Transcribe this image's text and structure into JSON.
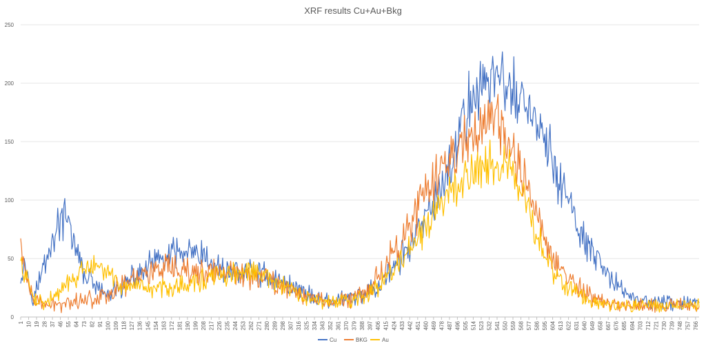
{
  "chart_data": {
    "type": "line",
    "title": "XRF results Cu+Au+Bkg",
    "xlabel": "",
    "ylabel": "",
    "x_range": [
      1,
      770
    ],
    "x_tick_step": 9,
    "x_tick_labels": [
      "1",
      "10",
      "19",
      "28",
      "37",
      "46",
      "55",
      "64",
      "73",
      "82",
      "91",
      "100",
      "109",
      "118",
      "127",
      "136",
      "145",
      "154",
      "163",
      "172",
      "181",
      "190",
      "199",
      "208",
      "217",
      "226",
      "235",
      "244",
      "253",
      "262",
      "271",
      "280",
      "289",
      "298",
      "307",
      "316",
      "325",
      "334",
      "343",
      "352",
      "361",
      "370",
      "379",
      "388",
      "397",
      "406",
      "415",
      "424",
      "433",
      "442",
      "451",
      "460",
      "469",
      "478",
      "487",
      "496",
      "505",
      "514",
      "523",
      "532",
      "541",
      "550",
      "559",
      "568",
      "577",
      "586",
      "595",
      "604",
      "613",
      "622",
      "631",
      "640",
      "649",
      "658",
      "667",
      "676",
      "685",
      "694",
      "703",
      "712",
      "721",
      "730",
      "739",
      "748",
      "757",
      "766"
    ],
    "ylim": [
      0,
      250
    ],
    "y_ticks": [
      0,
      50,
      100,
      150,
      200,
      250
    ],
    "grid": true,
    "legend_position": "bottom",
    "series": [
      {
        "name": "Cu",
        "color": "#4472c4",
        "anchors": [
          [
            1,
            38
          ],
          [
            5,
            50
          ],
          [
            10,
            30
          ],
          [
            15,
            20
          ],
          [
            20,
            25
          ],
          [
            25,
            38
          ],
          [
            30,
            52
          ],
          [
            37,
            65
          ],
          [
            42,
            75
          ],
          [
            46,
            85
          ],
          [
            50,
            82
          ],
          [
            55,
            80
          ],
          [
            60,
            70
          ],
          [
            64,
            55
          ],
          [
            70,
            42
          ],
          [
            75,
            35
          ],
          [
            82,
            30
          ],
          [
            91,
            22
          ],
          [
            100,
            18
          ],
          [
            109,
            22
          ],
          [
            118,
            26
          ],
          [
            127,
            32
          ],
          [
            136,
            38
          ],
          [
            145,
            42
          ],
          [
            154,
            47
          ],
          [
            163,
            50
          ],
          [
            172,
            52
          ],
          [
            181,
            55
          ],
          [
            190,
            55
          ],
          [
            199,
            52
          ],
          [
            208,
            50
          ],
          [
            217,
            45
          ],
          [
            226,
            42
          ],
          [
            235,
            40
          ],
          [
            244,
            40
          ],
          [
            253,
            38
          ],
          [
            262,
            40
          ],
          [
            271,
            38
          ],
          [
            280,
            36
          ],
          [
            289,
            32
          ],
          [
            298,
            30
          ],
          [
            307,
            27
          ],
          [
            316,
            24
          ],
          [
            325,
            20
          ],
          [
            334,
            17
          ],
          [
            343,
            15
          ],
          [
            352,
            14
          ],
          [
            361,
            14
          ],
          [
            370,
            15
          ],
          [
            379,
            16
          ],
          [
            388,
            18
          ],
          [
            397,
            22
          ],
          [
            406,
            28
          ],
          [
            415,
            35
          ],
          [
            424,
            42
          ],
          [
            433,
            52
          ],
          [
            442,
            60
          ],
          [
            451,
            70
          ],
          [
            460,
            82
          ],
          [
            469,
            96
          ],
          [
            478,
            112
          ],
          [
            487,
            130
          ],
          [
            496,
            150
          ],
          [
            505,
            172
          ],
          [
            514,
            190
          ],
          [
            523,
            200
          ],
          [
            532,
            205
          ],
          [
            541,
            206
          ],
          [
            550,
            200
          ],
          [
            559,
            192
          ],
          [
            568,
            185
          ],
          [
            577,
            178
          ],
          [
            586,
            165
          ],
          [
            595,
            150
          ],
          [
            604,
            132
          ],
          [
            613,
            115
          ],
          [
            622,
            98
          ],
          [
            631,
            80
          ],
          [
            640,
            66
          ],
          [
            649,
            52
          ],
          [
            658,
            42
          ],
          [
            667,
            35
          ],
          [
            676,
            28
          ],
          [
            685,
            22
          ],
          [
            694,
            18
          ],
          [
            703,
            15
          ],
          [
            712,
            13
          ],
          [
            721,
            12
          ],
          [
            730,
            12
          ],
          [
            739,
            12
          ],
          [
            748,
            12
          ],
          [
            757,
            12
          ],
          [
            766,
            12
          ],
          [
            770,
            12
          ]
        ],
        "noise": 8
      },
      {
        "name": "BKG",
        "color": "#ed7d31",
        "anchors": [
          [
            1,
            62
          ],
          [
            3,
            55
          ],
          [
            6,
            38
          ],
          [
            10,
            25
          ],
          [
            15,
            15
          ],
          [
            20,
            12
          ],
          [
            28,
            11
          ],
          [
            37,
            10
          ],
          [
            46,
            11
          ],
          [
            55,
            13
          ],
          [
            64,
            14
          ],
          [
            73,
            15
          ],
          [
            82,
            16
          ],
          [
            91,
            18
          ],
          [
            100,
            20
          ],
          [
            109,
            24
          ],
          [
            118,
            28
          ],
          [
            127,
            32
          ],
          [
            136,
            36
          ],
          [
            145,
            38
          ],
          [
            154,
            40
          ],
          [
            163,
            40
          ],
          [
            172,
            40
          ],
          [
            181,
            38
          ],
          [
            190,
            38
          ],
          [
            199,
            38
          ],
          [
            208,
            38
          ],
          [
            217,
            38
          ],
          [
            226,
            38
          ],
          [
            235,
            38
          ],
          [
            244,
            38
          ],
          [
            253,
            37
          ],
          [
            262,
            36
          ],
          [
            271,
            35
          ],
          [
            280,
            33
          ],
          [
            289,
            30
          ],
          [
            298,
            27
          ],
          [
            307,
            24
          ],
          [
            316,
            21
          ],
          [
            325,
            18
          ],
          [
            334,
            15
          ],
          [
            343,
            14
          ],
          [
            352,
            13
          ],
          [
            361,
            14
          ],
          [
            370,
            15
          ],
          [
            379,
            17
          ],
          [
            388,
            21
          ],
          [
            397,
            27
          ],
          [
            406,
            35
          ],
          [
            415,
            45
          ],
          [
            424,
            56
          ],
          [
            433,
            68
          ],
          [
            442,
            80
          ],
          [
            451,
            92
          ],
          [
            460,
            104
          ],
          [
            469,
            115
          ],
          [
            478,
            125
          ],
          [
            487,
            135
          ],
          [
            496,
            145
          ],
          [
            505,
            152
          ],
          [
            514,
            160
          ],
          [
            523,
            166
          ],
          [
            532,
            168
          ],
          [
            541,
            164
          ],
          [
            550,
            155
          ],
          [
            559,
            142
          ],
          [
            568,
            125
          ],
          [
            577,
            105
          ],
          [
            586,
            86
          ],
          [
            595,
            68
          ],
          [
            604,
            52
          ],
          [
            613,
            40
          ],
          [
            622,
            32
          ],
          [
            631,
            26
          ],
          [
            640,
            21
          ],
          [
            649,
            17
          ],
          [
            658,
            14
          ],
          [
            667,
            12
          ],
          [
            676,
            11
          ],
          [
            685,
            11
          ],
          [
            694,
            10
          ],
          [
            703,
            10
          ],
          [
            712,
            10
          ],
          [
            721,
            10
          ],
          [
            730,
            10
          ],
          [
            739,
            10
          ],
          [
            748,
            10
          ],
          [
            757,
            10
          ],
          [
            766,
            10
          ],
          [
            770,
            10
          ]
        ],
        "noise": 8
      },
      {
        "name": "Au",
        "color": "#ffc000",
        "anchors": [
          [
            1,
            45
          ],
          [
            5,
            38
          ],
          [
            10,
            26
          ],
          [
            15,
            18
          ],
          [
            20,
            14
          ],
          [
            28,
            13
          ],
          [
            37,
            16
          ],
          [
            46,
            22
          ],
          [
            55,
            28
          ],
          [
            64,
            34
          ],
          [
            73,
            40
          ],
          [
            82,
            42
          ],
          [
            91,
            42
          ],
          [
            100,
            38
          ],
          [
            109,
            30
          ],
          [
            118,
            26
          ],
          [
            127,
            24
          ],
          [
            136,
            24
          ],
          [
            145,
            24
          ],
          [
            154,
            24
          ],
          [
            163,
            25
          ],
          [
            172,
            26
          ],
          [
            181,
            27
          ],
          [
            190,
            28
          ],
          [
            199,
            30
          ],
          [
            208,
            32
          ],
          [
            217,
            33
          ],
          [
            226,
            35
          ],
          [
            235,
            36
          ],
          [
            244,
            37
          ],
          [
            253,
            38
          ],
          [
            262,
            38
          ],
          [
            271,
            36
          ],
          [
            280,
            33
          ],
          [
            289,
            30
          ],
          [
            298,
            26
          ],
          [
            307,
            22
          ],
          [
            316,
            19
          ],
          [
            325,
            16
          ],
          [
            334,
            14
          ],
          [
            343,
            13
          ],
          [
            352,
            13
          ],
          [
            361,
            13
          ],
          [
            370,
            14
          ],
          [
            379,
            15
          ],
          [
            388,
            17
          ],
          [
            397,
            20
          ],
          [
            406,
            26
          ],
          [
            415,
            33
          ],
          [
            424,
            40
          ],
          [
            433,
            48
          ],
          [
            442,
            57
          ],
          [
            451,
            66
          ],
          [
            460,
            76
          ],
          [
            469,
            86
          ],
          [
            478,
            96
          ],
          [
            487,
            105
          ],
          [
            496,
            113
          ],
          [
            505,
            120
          ],
          [
            514,
            126
          ],
          [
            523,
            131
          ],
          [
            532,
            134
          ],
          [
            541,
            134
          ],
          [
            550,
            130
          ],
          [
            559,
            120
          ],
          [
            568,
            105
          ],
          [
            577,
            88
          ],
          [
            586,
            70
          ],
          [
            595,
            54
          ],
          [
            604,
            41
          ],
          [
            613,
            32
          ],
          [
            622,
            25
          ],
          [
            631,
            20
          ],
          [
            640,
            16
          ],
          [
            649,
            13
          ],
          [
            658,
            12
          ],
          [
            667,
            11
          ],
          [
            676,
            11
          ],
          [
            685,
            10
          ],
          [
            694,
            10
          ],
          [
            703,
            10
          ],
          [
            712,
            10
          ],
          [
            721,
            10
          ],
          [
            730,
            10
          ],
          [
            739,
            10
          ],
          [
            748,
            10
          ],
          [
            757,
            10
          ],
          [
            766,
            10
          ],
          [
            770,
            10
          ]
        ],
        "noise": 7
      }
    ]
  }
}
